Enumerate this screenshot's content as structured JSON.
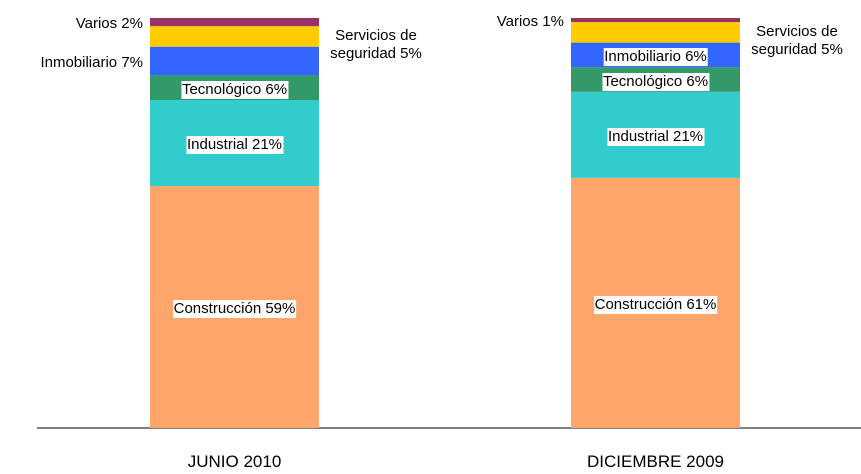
{
  "chart_data": {
    "type": "stacked_bar",
    "categories": [
      "JUNIO 2010",
      "DICIEMBRE 2009"
    ],
    "ylim": [
      0,
      100
    ],
    "series": [
      {
        "name": "Construcción",
        "color": "#fda56b",
        "values": [
          59,
          61
        ],
        "value_labels": [
          "Construcción 59%",
          "Construcción 61%"
        ]
      },
      {
        "name": "Industrial",
        "color": "#33cccc",
        "values": [
          21,
          21
        ],
        "value_labels": [
          "Industrial 21%",
          "Industrial 21%"
        ]
      },
      {
        "name": "Tecnológico",
        "color": "#339966",
        "values": [
          6,
          6
        ],
        "value_labels": [
          "Tecnológico 6%",
          "Tecnológico 6%"
        ]
      },
      {
        "name": "Inmobiliario",
        "color": "#3366ff",
        "values": [
          7,
          6
        ],
        "value_labels": [
          "Inmobiliario 7%",
          "Inmobiliario 6%"
        ]
      },
      {
        "name": "Servicios de seguridad",
        "color": "#ffcc00",
        "values": [
          5,
          5
        ],
        "value_labels": [
          "Servicios de seguridad 5%",
          "Servicios de seguridad 5%"
        ]
      },
      {
        "name": "Varios",
        "color": "#993366",
        "values": [
          2,
          1
        ],
        "value_labels": [
          "Varios 2%",
          "Varios 1%"
        ]
      }
    ]
  }
}
